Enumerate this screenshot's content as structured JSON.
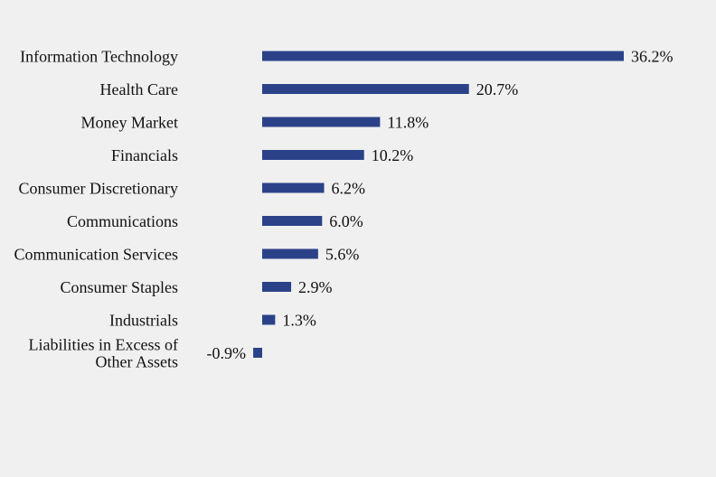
{
  "chart_data": {
    "type": "bar",
    "orientation": "horizontal",
    "categories": [
      "Information Technology",
      "Health Care",
      "Money Market",
      "Financials",
      "Consumer Discretionary",
      "Communications",
      "Communication Services",
      "Consumer Staples",
      "Industrials",
      "Liabilities in Excess of Other Assets"
    ],
    "values": [
      36.2,
      20.7,
      11.8,
      10.2,
      6.2,
      6.0,
      5.6,
      2.9,
      1.3,
      -0.9
    ],
    "value_labels": [
      "36.2%",
      "20.7%",
      "11.8%",
      "10.2%",
      "6.2%",
      "6.0%",
      "5.6%",
      "2.9%",
      "1.3%",
      "-0.9%"
    ],
    "bar_color": "#2b4289",
    "grid": false,
    "legend": "none"
  }
}
